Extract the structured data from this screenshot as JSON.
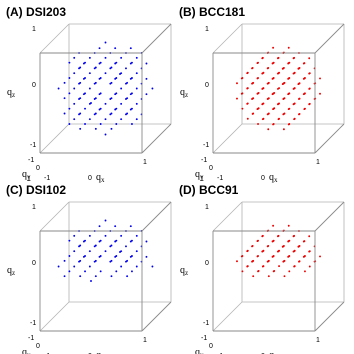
{
  "chart_data": [
    {
      "type": "scatter",
      "title": "(A) DSI203",
      "xlabel": "q_x",
      "ylabel": "q_y",
      "zlabel": "q_z",
      "xlim": [
        -1,
        1
      ],
      "ylim": [
        -1,
        1
      ],
      "zlim": [
        -1,
        1
      ],
      "grid": "cubic-lattice",
      "lattice_radius": 3,
      "point_count": 203,
      "color": "#0000ee",
      "z_ticks": [
        "1",
        "0",
        "-1"
      ],
      "y_ticks": [
        "1",
        "0",
        "-1"
      ],
      "x_ticks": [
        "-1",
        "0",
        "1"
      ]
    },
    {
      "type": "scatter",
      "title": "(B) BCC181",
      "xlabel": "q_x",
      "ylabel": "q_y",
      "zlabel": "q_z",
      "xlim": [
        -1,
        1
      ],
      "ylim": [
        -1,
        1
      ],
      "zlim": [
        -1,
        1
      ],
      "grid": "body-centered-cubic-lattice",
      "lattice_radius": 3,
      "point_count": 181,
      "color": "#ee0000",
      "z_ticks": [
        "1",
        "0",
        "-1"
      ],
      "y_ticks": [
        "1",
        "0",
        "-1"
      ],
      "x_ticks": [
        "-1",
        "0",
        "1"
      ]
    },
    {
      "type": "scatter",
      "title": "(C) DSI102",
      "xlabel": "q_x",
      "ylabel": "q_y",
      "zlabel": "q_z",
      "xlim": [
        -1,
        1
      ],
      "ylim": [
        -1,
        1
      ],
      "zlim": [
        -1,
        1
      ],
      "grid": "cubic-lattice-half-sphere",
      "lattice_radius": 3,
      "point_count": 102,
      "color": "#0000ee",
      "z_ticks": [
        "1",
        "0",
        "-1"
      ],
      "y_ticks": [
        "1",
        "0",
        "-1"
      ],
      "x_ticks": [
        "-1",
        "0",
        "1"
      ]
    },
    {
      "type": "scatter",
      "title": "(D) BCC91",
      "xlabel": "q_x",
      "ylabel": "q_y",
      "zlabel": "q_z",
      "xlim": [
        -1,
        1
      ],
      "ylim": [
        -1,
        1
      ],
      "zlim": [
        -1,
        1
      ],
      "grid": "body-centered-cubic-lattice-half-sphere",
      "lattice_radius": 3,
      "point_count": 91,
      "color": "#ee0000",
      "z_ticks": [
        "1",
        "0",
        "-1"
      ],
      "y_ticks": [
        "1",
        "0",
        "-1"
      ],
      "x_ticks": [
        "-1",
        "0",
        "1"
      ]
    }
  ]
}
